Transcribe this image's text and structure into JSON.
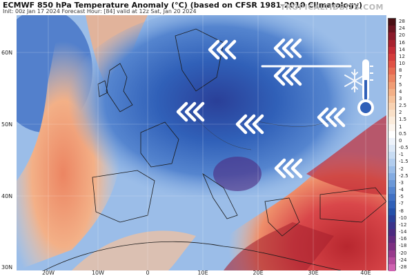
{
  "header": {
    "title": "ECMWF 850 hPa Temperature Anomaly (°C) (based on CFSR 1981-2010 Climatology)",
    "subtitle": "Init: 00z Jan 17 2024   Forecast Hour: [84]   valid at 12z Sat, Jan 20 2024",
    "brand": "TROPICALTIDBITS.COM"
  },
  "lat_labels": [
    "60N",
    "50N",
    "40N",
    "30N"
  ],
  "lon_labels": [
    "20W",
    "10W",
    "0",
    "10E",
    "20E",
    "30E",
    "40E"
  ],
  "colorbar": {
    "labels": [
      "28",
      "24",
      "20",
      "16",
      "14",
      "12",
      "10",
      "8",
      "7",
      "5",
      "4",
      "3",
      "2.5",
      "2",
      "1.5",
      "1",
      "0.5",
      "0",
      "-0.5",
      "-1",
      "-1.5",
      "-2",
      "-2.5",
      "-3",
      "-4",
      "-5",
      "-7",
      "-8",
      "-10",
      "-12",
      "-14",
      "-16",
      "-18",
      "-20",
      "-24",
      "-28"
    ],
    "colors": [
      "#4a0f14",
      "#6a1420",
      "#8a1a2a",
      "#a8222f",
      "#c32c36",
      "#d43c3c",
      "#e05246",
      "#e76b52",
      "#ec8562",
      "#f09c74",
      "#f3b087",
      "#f6c29b",
      "#f8d2b2",
      "#f9e0c8",
      "#fbecdc",
      "#fcf5ee",
      "#ffffff",
      "#eef3fb",
      "#dce8f7",
      "#c8dcf3",
      "#b2cdee",
      "#9bbde8",
      "#83abe1",
      "#6b98d8",
      "#5585cf",
      "#4171c4",
      "#3060b8",
      "#2450a9",
      "#2a3f98",
      "#3a328a",
      "#4c2a80",
      "#632a7e",
      "#7c2f81",
      "#983a8c",
      "#b44b9b",
      "#cf62b0"
    ]
  },
  "arrows": [
    {
      "label": "cold-advection-arrow-1"
    },
    {
      "label": "cold-advection-arrow-2"
    },
    {
      "label": "cold-advection-arrow-3"
    },
    {
      "label": "cold-advection-arrow-4"
    },
    {
      "label": "cold-advection-arrow-5"
    },
    {
      "label": "cold-advection-arrow-6"
    },
    {
      "label": "cold-advection-arrow-7"
    },
    {
      "label": "cold-advection-arrow-8"
    }
  ]
}
